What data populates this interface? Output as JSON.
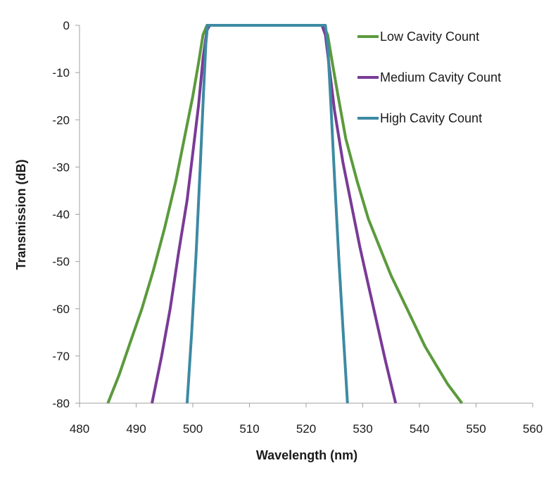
{
  "chart_data": {
    "type": "line",
    "title": "",
    "xlabel": "Wavelength (nm)",
    "ylabel": "Transmission (dB)",
    "xlim": [
      480,
      560
    ],
    "ylim": [
      -80,
      0
    ],
    "xticks": [
      "480",
      "490",
      "500",
      "510",
      "520",
      "530",
      "540",
      "550",
      "560"
    ],
    "yticks": [
      "0",
      "-10",
      "-20",
      "-30",
      "-40",
      "-50",
      "-60",
      "-70",
      "-80"
    ],
    "grid": false,
    "legend_position": "top-right",
    "series": [
      {
        "name": "Low Cavity Count",
        "color": "#5b9a3c",
        "points": [
          [
            485,
            -80
          ],
          [
            487,
            -74
          ],
          [
            489,
            -67
          ],
          [
            491,
            -60
          ],
          [
            493,
            -52
          ],
          [
            495,
            -43
          ],
          [
            497,
            -33
          ],
          [
            499,
            -21
          ],
          [
            500,
            -15
          ],
          [
            501,
            -8
          ],
          [
            501.8,
            -2
          ],
          [
            502.5,
            0
          ],
          [
            523,
            0
          ],
          [
            523.8,
            -2
          ],
          [
            524.5,
            -7
          ],
          [
            525.5,
            -14
          ],
          [
            527,
            -24
          ],
          [
            529,
            -33
          ],
          [
            531,
            -41
          ],
          [
            533,
            -47
          ],
          [
            535,
            -53
          ],
          [
            537,
            -58
          ],
          [
            539,
            -63
          ],
          [
            541,
            -68
          ],
          [
            543,
            -72
          ],
          [
            545,
            -76
          ],
          [
            547.5,
            -80
          ]
        ]
      },
      {
        "name": "Medium Cavity Count",
        "color": "#7a3a96",
        "points": [
          [
            492.8,
            -80
          ],
          [
            494.5,
            -70
          ],
          [
            496,
            -60
          ],
          [
            497.5,
            -48
          ],
          [
            499,
            -37
          ],
          [
            500,
            -27
          ],
          [
            501,
            -17
          ],
          [
            501.8,
            -7
          ],
          [
            502.5,
            -1
          ],
          [
            503,
            0
          ],
          [
            522.8,
            0
          ],
          [
            523.4,
            -2
          ],
          [
            524,
            -8
          ],
          [
            525,
            -18
          ],
          [
            526.5,
            -29
          ],
          [
            528,
            -38
          ],
          [
            529.5,
            -47
          ],
          [
            531,
            -55
          ],
          [
            532.5,
            -63
          ],
          [
            534,
            -71
          ],
          [
            535.8,
            -80
          ]
        ]
      },
      {
        "name": "High Cavity Count",
        "color": "#3d8aa3",
        "points": [
          [
            499,
            -80
          ],
          [
            499.8,
            -65
          ],
          [
            500.6,
            -48
          ],
          [
            501.3,
            -30
          ],
          [
            501.9,
            -14
          ],
          [
            502.3,
            -4
          ],
          [
            502.6,
            0
          ],
          [
            523.4,
            0
          ],
          [
            523.8,
            -4
          ],
          [
            524.3,
            -15
          ],
          [
            525,
            -32
          ],
          [
            525.8,
            -50
          ],
          [
            526.6,
            -66
          ],
          [
            527.3,
            -80
          ]
        ]
      }
    ]
  }
}
